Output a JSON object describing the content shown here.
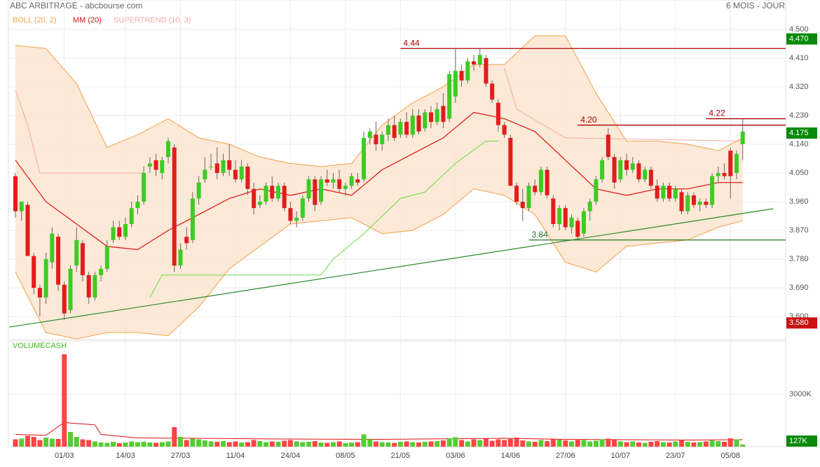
{
  "chart_data": {
    "type": "candlestick",
    "title": "ABC ARBITRAGE - abcbourse.com",
    "period": "6 MOIS - JOUR",
    "up_color": "#3dcc22",
    "down_color": "#e31c1c",
    "grid": true,
    "xlim": [
      -1.15,
      126.03
    ],
    "ylim": [
      3.528,
      4.592
    ],
    "yticks": [
      {
        "value": 4.5,
        "label": "4.500"
      },
      {
        "value": 4.41,
        "label": "4.410"
      },
      {
        "value": 4.32,
        "label": "4.320"
      },
      {
        "value": 4.23,
        "label": "4.230"
      },
      {
        "value": 4.14,
        "label": "4.140"
      },
      {
        "value": 4.05,
        "label": "4.050"
      },
      {
        "value": 3.96,
        "label": "3.960"
      },
      {
        "value": 3.87,
        "label": "3.870"
      },
      {
        "value": 3.78,
        "label": "3.780"
      },
      {
        "value": 3.69,
        "label": "3.690"
      },
      {
        "value": 3.6,
        "label": "3.600"
      }
    ],
    "categories": [
      null,
      null,
      null,
      null,
      null,
      null,
      null,
      null,
      "01/03",
      null,
      null,
      null,
      null,
      null,
      null,
      null,
      null,
      null,
      "14/03",
      null,
      null,
      null,
      null,
      null,
      null,
      null,
      null,
      "27/03",
      null,
      null,
      null,
      null,
      null,
      null,
      null,
      null,
      "11/04",
      null,
      null,
      null,
      null,
      null,
      null,
      null,
      null,
      "24/04",
      null,
      null,
      null,
      null,
      null,
      null,
      null,
      null,
      "08/05",
      null,
      null,
      null,
      null,
      null,
      null,
      null,
      null,
      "21/05",
      null,
      null,
      null,
      null,
      null,
      null,
      null,
      null,
      "03/06",
      null,
      null,
      null,
      null,
      null,
      null,
      null,
      null,
      "14/06",
      null,
      null,
      null,
      null,
      null,
      null,
      null,
      null,
      "27/06",
      null,
      null,
      null,
      null,
      null,
      null,
      null,
      null,
      "10/07",
      null,
      null,
      null,
      null,
      null,
      null,
      null,
      null,
      "23/07",
      null,
      null,
      null,
      null,
      null,
      null,
      null,
      null,
      "05/08",
      null,
      null
    ],
    "ohlc": [
      [
        4.04,
        4.05,
        3.91,
        3.93
      ],
      [
        3.93,
        3.96,
        3.9,
        3.96
      ],
      [
        3.95,
        3.96,
        3.79,
        3.79
      ],
      [
        3.79,
        3.8,
        3.67,
        3.69
      ],
      [
        3.69,
        3.7,
        3.6,
        3.66
      ],
      [
        3.66,
        3.8,
        3.64,
        3.78
      ],
      [
        3.77,
        3.88,
        3.75,
        3.86
      ],
      [
        3.85,
        3.86,
        3.68,
        3.7
      ],
      [
        3.7,
        3.71,
        3.59,
        3.61
      ],
      [
        3.62,
        3.76,
        3.61,
        3.75
      ],
      [
        3.76,
        3.88,
        3.74,
        3.84
      ],
      [
        3.83,
        3.84,
        3.71,
        3.73
      ],
      [
        3.73,
        3.74,
        3.64,
        3.66
      ],
      [
        3.66,
        3.74,
        3.65,
        3.73
      ],
      [
        3.73,
        3.76,
        3.71,
        3.75
      ],
      [
        3.75,
        3.84,
        3.74,
        3.82
      ],
      [
        3.84,
        3.9,
        3.83,
        3.88
      ],
      [
        3.88,
        3.9,
        3.84,
        3.85
      ],
      [
        3.85,
        3.91,
        3.84,
        3.89
      ],
      [
        3.89,
        3.96,
        3.88,
        3.94
      ],
      [
        3.94,
        3.98,
        3.92,
        3.96
      ],
      [
        3.96,
        4.07,
        3.95,
        4.05
      ],
      [
        4.07,
        4.1,
        4.05,
        4.08
      ],
      [
        4.09,
        4.11,
        4.04,
        4.06
      ],
      [
        4.05,
        4.1,
        4.03,
        4.09
      ],
      [
        4.1,
        4.16,
        4.08,
        4.15
      ],
      [
        4.13,
        4.14,
        3.74,
        3.76
      ],
      [
        3.76,
        3.83,
        3.75,
        3.81
      ],
      [
        3.85,
        3.88,
        3.81,
        3.83
      ],
      [
        3.84,
        3.99,
        3.83,
        3.97
      ],
      [
        3.97,
        4.04,
        3.95,
        4.02
      ],
      [
        4.03,
        4.1,
        4.02,
        4.06
      ],
      [
        4.07,
        4.11,
        4.06,
        4.07
      ],
      [
        4.08,
        4.13,
        4.03,
        4.05
      ],
      [
        4.05,
        4.11,
        4.04,
        4.09
      ],
      [
        4.09,
        4.14,
        4.04,
        4.06
      ],
      [
        4.06,
        4.09,
        4.02,
        4.03
      ],
      [
        4.03,
        4.09,
        4.02,
        4.07
      ],
      [
        4.07,
        4.08,
        3.98,
        4.0
      ],
      [
        4.0,
        4.02,
        3.92,
        3.94
      ],
      [
        3.95,
        3.98,
        3.94,
        3.96
      ],
      [
        3.96,
        4.02,
        3.95,
        4.01
      ],
      [
        4.01,
        4.04,
        3.96,
        3.97
      ],
      [
        3.97,
        4.02,
        3.96,
        4.01
      ],
      [
        4.01,
        4.02,
        3.93,
        3.94
      ],
      [
        3.94,
        3.96,
        3.89,
        3.9
      ],
      [
        3.9,
        3.93,
        3.88,
        3.91
      ],
      [
        3.91,
        3.98,
        3.9,
        3.97
      ],
      [
        3.97,
        4.04,
        3.96,
        4.03
      ],
      [
        4.03,
        4.04,
        3.93,
        3.95
      ],
      [
        3.96,
        4.04,
        3.95,
        4.03
      ],
      [
        4.03,
        4.06,
        4.01,
        4.02
      ],
      [
        4.02,
        4.05,
        4.0,
        4.03
      ],
      [
        4.03,
        4.06,
        3.99,
        4.0
      ],
      [
        4.0,
        4.02,
        3.98,
        4.01
      ],
      [
        4.01,
        4.05,
        4.0,
        4.04
      ],
      [
        4.03,
        4.05,
        4.01,
        4.02
      ],
      [
        4.03,
        4.18,
        4.02,
        4.16
      ],
      [
        4.16,
        4.19,
        4.14,
        4.18
      ],
      [
        4.17,
        4.21,
        4.12,
        4.14
      ],
      [
        4.14,
        4.18,
        4.12,
        4.17
      ],
      [
        4.17,
        4.22,
        4.15,
        4.2
      ],
      [
        4.2,
        4.23,
        4.15,
        4.16
      ],
      [
        4.17,
        4.22,
        4.16,
        4.21
      ],
      [
        4.21,
        4.24,
        4.16,
        4.17
      ],
      [
        4.17,
        4.25,
        4.16,
        4.23
      ],
      [
        4.23,
        4.25,
        4.17,
        4.18
      ],
      [
        4.19,
        4.25,
        4.18,
        4.24
      ],
      [
        4.24,
        4.26,
        4.19,
        4.21
      ],
      [
        4.21,
        4.27,
        4.2,
        4.25
      ],
      [
        4.26,
        4.3,
        4.19,
        4.21
      ],
      [
        4.22,
        4.37,
        4.21,
        4.36
      ],
      [
        4.29,
        4.44,
        4.27,
        4.37
      ],
      [
        4.37,
        4.39,
        4.32,
        4.34
      ],
      [
        4.34,
        4.41,
        4.33,
        4.4
      ],
      [
        4.4,
        4.42,
        4.37,
        4.39
      ],
      [
        4.39,
        4.44,
        4.38,
        4.42
      ],
      [
        4.41,
        4.42,
        4.32,
        4.33
      ],
      [
        4.33,
        4.34,
        4.27,
        4.28
      ],
      [
        4.27,
        4.28,
        4.18,
        4.2
      ],
      [
        4.2,
        4.21,
        4.16,
        4.17
      ],
      [
        4.16,
        4.17,
        4.01,
        4.01
      ],
      [
        4.01,
        4.02,
        3.95,
        3.96
      ],
      [
        3.96,
        4.0,
        3.9,
        3.94
      ],
      [
        3.94,
        4.02,
        3.93,
        4.01
      ],
      [
        4.01,
        4.03,
        3.98,
        3.99
      ],
      [
        3.99,
        4.07,
        3.98,
        4.06
      ],
      [
        4.06,
        4.07,
        3.97,
        3.98
      ],
      [
        3.97,
        3.98,
        3.88,
        3.89
      ],
      [
        3.89,
        3.95,
        3.87,
        3.94
      ],
      [
        3.94,
        3.95,
        3.87,
        3.88
      ],
      [
        3.88,
        3.92,
        3.86,
        3.91
      ],
      [
        3.9,
        3.91,
        3.84,
        3.85
      ],
      [
        3.86,
        3.94,
        3.85,
        3.93
      ],
      [
        3.93,
        3.97,
        3.9,
        3.96
      ],
      [
        3.96,
        4.04,
        3.95,
        4.03
      ],
      [
        4.03,
        4.1,
        4.02,
        4.09
      ],
      [
        4.17,
        4.19,
        4.09,
        4.1
      ],
      [
        4.1,
        4.11,
        4.0,
        4.02
      ],
      [
        4.03,
        4.1,
        4.02,
        4.09
      ],
      [
        4.09,
        4.11,
        4.04,
        4.06
      ],
      [
        4.06,
        4.1,
        4.05,
        4.08
      ],
      [
        4.08,
        4.09,
        4.02,
        4.03
      ],
      [
        4.03,
        4.07,
        4.02,
        4.06
      ],
      [
        4.06,
        4.07,
        4.0,
        4.01
      ],
      [
        4.01,
        4.03,
        3.96,
        3.97
      ],
      [
        3.97,
        4.02,
        3.96,
        4.01
      ],
      [
        4.01,
        4.02,
        3.96,
        3.97
      ],
      [
        3.97,
        4.01,
        3.96,
        4.0
      ],
      [
        3.99,
        4.0,
        3.92,
        3.93
      ],
      [
        3.93,
        3.99,
        3.92,
        3.98
      ],
      [
        3.98,
        3.99,
        3.94,
        3.95
      ],
      [
        3.95,
        3.97,
        3.93,
        3.96
      ],
      [
        3.96,
        3.97,
        3.94,
        3.95
      ],
      [
        3.95,
        4.05,
        3.94,
        4.04
      ],
      [
        4.04,
        4.07,
        4.02,
        4.05
      ],
      [
        4.05,
        4.08,
        4.03,
        4.04
      ],
      [
        4.12,
        4.13,
        3.97,
        4.04
      ],
      [
        4.05,
        4.12,
        4.03,
        4.11
      ],
      [
        4.14,
        4.22,
        4.09,
        4.18
      ]
    ],
    "bollinger": {
      "name": "BOLL (20, 2)",
      "color": "#f2a24a",
      "fill": "#fde4cd",
      "x": [
        0,
        5,
        10,
        15,
        20,
        25,
        30,
        35,
        40,
        45,
        50,
        55,
        60,
        65,
        70,
        75,
        80,
        85,
        90,
        95,
        100,
        105,
        110,
        115,
        119
      ],
      "upper": [
        4.45,
        4.44,
        4.33,
        4.13,
        4.17,
        4.22,
        4.16,
        4.14,
        4.1,
        4.08,
        4.07,
        4.08,
        4.2,
        4.27,
        4.32,
        4.39,
        4.39,
        4.48,
        4.48,
        4.3,
        4.15,
        4.15,
        4.14,
        4.12,
        4.16
      ],
      "lower": [
        3.74,
        3.55,
        3.53,
        3.55,
        3.55,
        3.54,
        3.63,
        3.75,
        3.82,
        3.89,
        3.9,
        3.91,
        3.86,
        3.87,
        3.92,
        4.0,
        3.98,
        3.92,
        3.77,
        3.74,
        3.82,
        3.83,
        3.84,
        3.88,
        3.9
      ]
    },
    "ma": {
      "name": "MM (20)",
      "color": "#dd1111",
      "x": [
        0,
        5,
        10,
        15,
        20,
        25,
        30,
        35,
        40,
        45,
        50,
        55,
        60,
        65,
        70,
        75,
        80,
        85,
        90,
        95,
        100,
        105,
        110,
        115,
        119
      ],
      "values": [
        4.09,
        3.96,
        3.89,
        3.82,
        3.81,
        3.87,
        3.92,
        3.97,
        4.0,
        3.98,
        4.0,
        3.98,
        4.06,
        4.11,
        4.16,
        4.24,
        4.22,
        4.18,
        4.09,
        4.0,
        3.98,
        4.0,
        4.0,
        4.02,
        4.02
      ]
    },
    "supertrend": {
      "name": "SUPERTREND (10, 3)",
      "color": "#f4a9a9",
      "up_color": "#66dd44",
      "x": [
        0,
        2,
        4,
        21,
        22,
        24,
        50,
        52,
        57,
        63,
        67,
        72,
        77,
        79,
        80,
        82,
        90,
        119
      ],
      "values": [
        4.31,
        4.2,
        4.05,
        4.05,
        null,
        null,
        null,
        null,
        null,
        null,
        null,
        null,
        null,
        null,
        4.38,
        4.25,
        4.16,
        4.15
      ],
      "up_values": [
        null,
        null,
        null,
        null,
        3.66,
        3.73,
        3.73,
        3.78,
        3.86,
        3.97,
        3.99,
        4.08,
        4.15,
        4.15,
        null,
        null,
        null,
        null
      ]
    },
    "hlines": [
      {
        "value": 4.44,
        "label": "4.44",
        "x_start": 63,
        "color": "#aa0000"
      },
      {
        "value": 4.2,
        "label": "4.20",
        "x_start": 92,
        "color": "#aa0000"
      },
      {
        "value": 4.22,
        "label": "4.22",
        "x_start": 113,
        "color": "#aa0000"
      },
      {
        "value": 3.84,
        "label": "3.84",
        "x_start": 84,
        "color": "#227722"
      }
    ],
    "trendline": {
      "x": [
        -1,
        124
      ],
      "values": [
        3.567,
        3.938
      ],
      "color": "#2a8a2a"
    },
    "price_tags": [
      {
        "value": 4.47,
        "label": "4.470",
        "color": "#0a8a0a"
      },
      {
        "value": 4.175,
        "label": "4.175",
        "color": "#0a8a0a"
      },
      {
        "value": 3.58,
        "label": "3.580",
        "color": "#cc1111"
      }
    ],
    "volume": {
      "title": "VOLUMECASH",
      "up_color": "#55cc33",
      "down_color": "#ff4444",
      "ylim": [
        0,
        6040
      ],
      "yticks": [
        {
          "value": 3000,
          "label": "3000K"
        }
      ],
      "values": [
        420,
        460,
        620,
        560,
        380,
        520,
        460,
        440,
        5280,
        840,
        560,
        420,
        380,
        300,
        240,
        220,
        280,
        200,
        240,
        300,
        260,
        280,
        240,
        220,
        260,
        300,
        1120,
        560,
        380,
        460,
        420,
        360,
        300,
        280,
        320,
        260,
        300,
        240,
        260,
        380,
        320,
        260,
        300,
        280,
        340,
        380,
        300,
        260,
        280,
        320,
        240,
        220,
        260,
        300,
        200,
        240,
        260,
        700,
        420,
        300,
        260,
        240,
        220,
        280,
        300,
        260,
        240,
        280,
        300,
        320,
        360,
        480,
        540,
        380,
        300,
        420,
        380,
        460,
        340,
        420,
        380,
        440,
        520,
        360,
        300,
        280,
        380,
        320,
        420,
        400,
        360,
        300,
        420,
        380,
        300,
        340,
        420,
        460,
        380,
        300,
        260,
        300,
        240,
        220,
        280,
        320,
        260,
        240,
        300,
        380,
        280,
        240,
        260,
        300,
        360,
        320,
        280,
        480,
        420,
        127
      ],
      "last_label": "127K",
      "last_color": "#0a8a0a",
      "ma": {
        "color": "#dd1111",
        "x": [
          0,
          5,
          8,
          9,
          13,
          14,
          20,
          30,
          40,
          50,
          60,
          70,
          80,
          90,
          100,
          110,
          119
        ],
        "values": [
          700,
          650,
          1400,
          1350,
          1250,
          700,
          500,
          480,
          450,
          430,
          420,
          450,
          480,
          420,
          400,
          380,
          400
        ]
      }
    }
  }
}
